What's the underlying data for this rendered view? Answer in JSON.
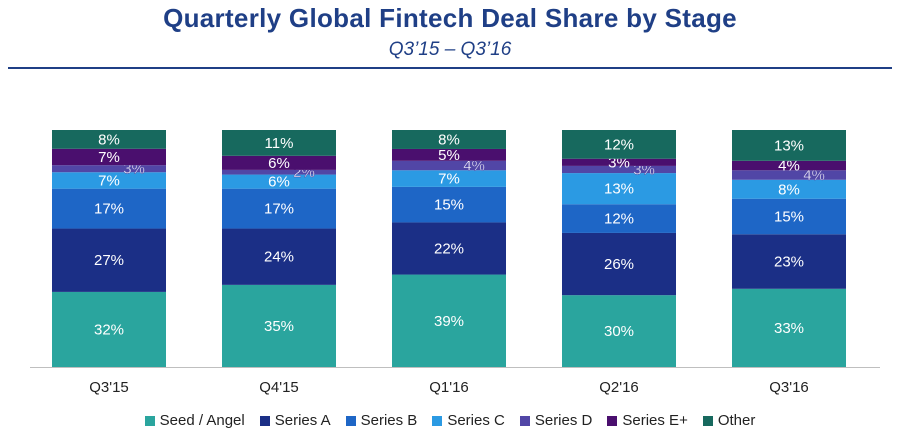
{
  "chart_data": {
    "type": "bar",
    "stacked": true,
    "title": "Quarterly  Global Fintech Deal Share by Stage",
    "subtitle": "Q3’15 – Q3’16",
    "xlabel": "",
    "ylabel": "",
    "ylim": [
      0,
      100
    ],
    "grid": false,
    "legend_position": "bottom",
    "categories": [
      "Q3'15",
      "Q4'15",
      "Q1'16",
      "Q2'16",
      "Q3'16"
    ],
    "series": [
      {
        "name": "Seed / Angel",
        "color": "#2aa59e",
        "values": [
          32,
          35,
          39,
          30,
          33
        ]
      },
      {
        "name": "Series A",
        "color": "#1b2f86",
        "values": [
          27,
          24,
          22,
          26,
          23
        ]
      },
      {
        "name": "Series B",
        "color": "#1e66c6",
        "values": [
          17,
          17,
          15,
          12,
          15
        ]
      },
      {
        "name": "Series C",
        "color": "#2b9ae3",
        "values": [
          7,
          6,
          7,
          13,
          8
        ]
      },
      {
        "name": "Series D",
        "color": "#5146a6",
        "values": [
          3,
          2,
          4,
          3,
          4
        ]
      },
      {
        "name": "Series E+",
        "color": "#4a0f6e",
        "values": [
          7,
          6,
          5,
          3,
          4
        ]
      },
      {
        "name": "Other",
        "color": "#17695e",
        "values": [
          8,
          11,
          8,
          12,
          13
        ]
      }
    ]
  }
}
